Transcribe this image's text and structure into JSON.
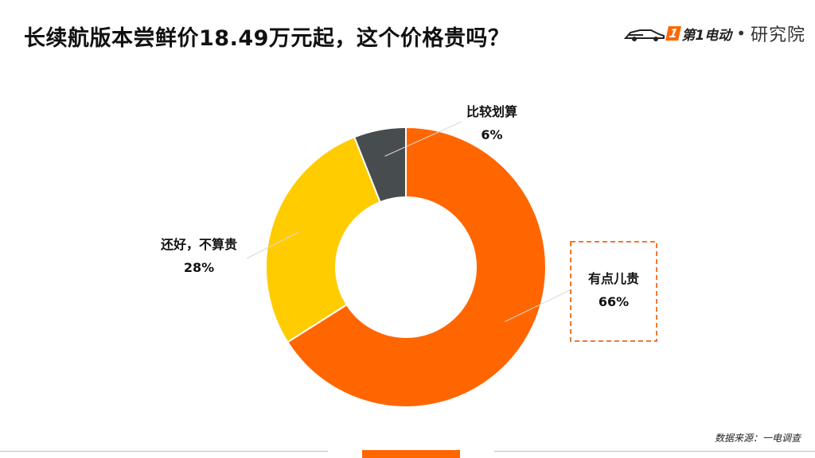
{
  "header": {
    "title": "长续航版本尝鲜价18.49万元起，这个价格贵吗？"
  },
  "logo": {
    "brand_number": "1",
    "brand_text": "第1电动",
    "separator": "•",
    "sub": "研究院"
  },
  "footer": {
    "source": "数据来源：一电调查"
  },
  "colors": {
    "orange": "#ff6600",
    "yellow": "#ffcc00",
    "dark": "#474c4f",
    "highlight_box": "#f07832"
  },
  "chart_data": {
    "type": "pie",
    "style": "donut",
    "start": "12 o'clock, clockwise",
    "series": [
      {
        "name": "有点儿贵",
        "value": 66,
        "label": "66%",
        "color": "#ff6600",
        "highlighted": true
      },
      {
        "name": "还好，不算贵",
        "value": 28,
        "label": "28%",
        "color": "#ffcc00",
        "highlighted": false
      },
      {
        "name": "比较划算",
        "value": 6,
        "label": "6%",
        "color": "#474c4f",
        "highlighted": false
      }
    ]
  }
}
